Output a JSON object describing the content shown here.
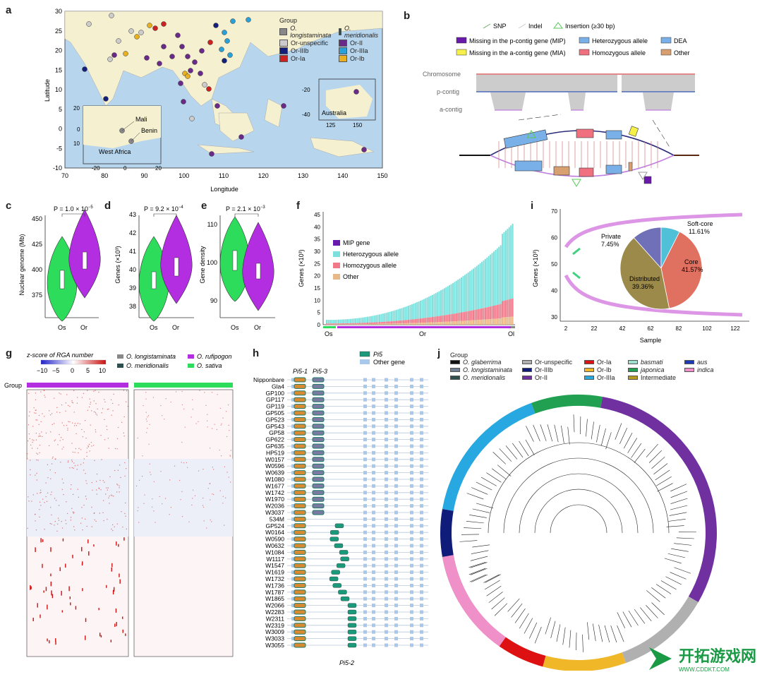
{
  "panels": {
    "a": {
      "label": "a",
      "xlabel": "Longitude",
      "ylabel": "Latitude",
      "xticks": [
        "70",
        "80",
        "90",
        "100",
        "110",
        "120",
        "130",
        "140",
        "150"
      ],
      "yticks": [
        "30",
        "25",
        "20",
        "15",
        "10",
        "5",
        "0",
        "-5",
        "-10"
      ],
      "legend_title": "Group",
      "legend": [
        {
          "name": "O. longistaminata",
          "color": "#888888"
        },
        {
          "name": "O. meridionalis",
          "color": "#2f4f4f"
        },
        {
          "name": "Or-unspecific",
          "color": "#cccccc"
        },
        {
          "name": "Or-II",
          "color": "#6a2a8a"
        },
        {
          "name": "Or-IIIb",
          "color": "#14207a"
        },
        {
          "name": "Or-IIIa",
          "color": "#2aa0d8"
        },
        {
          "name": "Or-Ia",
          "color": "#cc2222"
        },
        {
          "name": "Or-Ib",
          "color": "#e8b020"
        }
      ],
      "inset_west_africa": {
        "title": "West Africa",
        "labels": [
          "Mali",
          "Benin"
        ],
        "xticks": [
          "-20",
          "0",
          "20"
        ],
        "yticks": [
          "20",
          "10",
          "0"
        ]
      },
      "inset_australia": {
        "title": "Australia",
        "xticks": [
          "125",
          "150"
        ],
        "yticks": [
          "-20",
          "-40"
        ]
      }
    },
    "b": {
      "label": "b",
      "legend": [
        "SNP",
        "Indel",
        "Insertion (≥30 bp)",
        "Missing in the p-contig gene (MIP)",
        "Heterozygous allele",
        "DEA",
        "Missing in the a-contig gene (MIA)",
        "Homozygous allele",
        "Other"
      ],
      "tracks": [
        "Chromosome",
        "p-contig",
        "a-contig"
      ]
    },
    "c": {
      "label": "c",
      "ylabel": "Nuclear genome (Mb)",
      "pvalue": "P = 1.0 × 10",
      "pexp": "−5",
      "yticks": [
        "450",
        "425",
        "400",
        "375"
      ],
      "xticks": [
        "Os",
        "Or"
      ]
    },
    "d": {
      "label": "d",
      "ylabel": "Genes (×10³)",
      "pvalue": "P = 9.2 × 10",
      "pexp": "−4",
      "yticks": [
        "43",
        "42",
        "41",
        "40",
        "39",
        "38"
      ],
      "xticks": [
        "Os",
        "Or"
      ]
    },
    "e": {
      "label": "e",
      "ylabel": "Gene density",
      "pvalue": "P = 2.1 × 10",
      "pexp": "−3",
      "yticks": [
        "110",
        "100",
        "90"
      ],
      "xticks": [
        "Os",
        "Or"
      ]
    },
    "f": {
      "label": "f",
      "ylabel": "Genes (×10³)",
      "yticks": [
        "45",
        "40",
        "35",
        "30",
        "25",
        "20",
        "15",
        "10",
        "5",
        "0"
      ],
      "legend": [
        "MIP gene",
        "Heterozygous allele",
        "Homozygous allele",
        "Other"
      ],
      "xticks": [
        "Os",
        "Or",
        "Ol"
      ]
    },
    "i": {
      "label": "i",
      "ylabel": "Genes (×10³)",
      "xlabel": "Sample",
      "yticks": [
        "70",
        "60",
        "50",
        "40",
        "30"
      ],
      "xticks": [
        "2",
        "22",
        "42",
        "62",
        "82",
        "102",
        "122"
      ],
      "pie": [
        {
          "name": "Soft-core",
          "pct": "11.61%",
          "value": 11.61,
          "color": "#7070b8"
        },
        {
          "name": "Private",
          "pct": "7.45%",
          "value": 7.45,
          "color": "#50c0d8"
        },
        {
          "name": "Distributed",
          "pct": "39.36%",
          "value": 39.36,
          "color": "#e07060"
        },
        {
          "name": "Core",
          "pct": "41.57%",
          "value": 41.57,
          "color": "#9c8a4a"
        }
      ]
    },
    "g": {
      "label": "g",
      "title": "z-score of RGA number",
      "scale": [
        "−10",
        "−5",
        "0",
        "5",
        "10"
      ],
      "group_label": "Group",
      "legend": [
        "O. longistaminata",
        "O. meridionalis",
        "O. rufipogon",
        "O. sativa"
      ]
    },
    "h": {
      "label": "h",
      "legend": [
        "Pi5",
        "Other gene"
      ],
      "genes_top": [
        "Pi5-1",
        "Pi5-3"
      ],
      "gene_bottom": "Pi5-2",
      "samples": [
        "Nipponbare",
        "Gla4",
        "GP100",
        "GP117",
        "GP119",
        "GP505",
        "GP523",
        "GP543",
        "GP58",
        "GP622",
        "GP635",
        "HP519",
        "W0157",
        "W0596",
        "W0639",
        "W1080",
        "W1677",
        "W1742",
        "W1970",
        "W2036",
        "W3037",
        "534M",
        "GP524",
        "W0164",
        "W0590",
        "W0632",
        "W1084",
        "W1117",
        "W1547",
        "W1619",
        "W1732",
        "W1736",
        "W1787",
        "W1865",
        "W2066",
        "W2283",
        "W2311",
        "W2319",
        "W3009",
        "W3033",
        "W3055"
      ]
    },
    "j": {
      "label": "j",
      "legend_title": "Group",
      "legend": [
        {
          "name": "O. glaberrima",
          "color": "#111111"
        },
        {
          "name": "Or-unspecific",
          "color": "#b0b0b0"
        },
        {
          "name": "Or-Ia",
          "color": "#dd1111"
        },
        {
          "name": "basmati",
          "color": "#a0e0d0"
        },
        {
          "name": "aus",
          "color": "#1a3ab8"
        },
        {
          "name": "O. longistaminata",
          "color": "#708090"
        },
        {
          "name": "Or-IIIb",
          "color": "#101c7a"
        },
        {
          "name": "Or-Ib",
          "color": "#f0b828"
        },
        {
          "name": "japonica",
          "color": "#20a050"
        },
        {
          "name": "indica",
          "color": "#f090c8"
        },
        {
          "name": "O. meridionalis",
          "color": "#2f4f4f"
        },
        {
          "name": "Or-II",
          "color": "#7030a0"
        },
        {
          "name": "Or-IIIa",
          "color": "#28a8e0"
        },
        {
          "name": "Intermediate",
          "color": "#b89a20"
        }
      ]
    }
  },
  "watermark": {
    "title": "开拓游戏网",
    "url": "WWW.CDDKT.COM"
  }
}
